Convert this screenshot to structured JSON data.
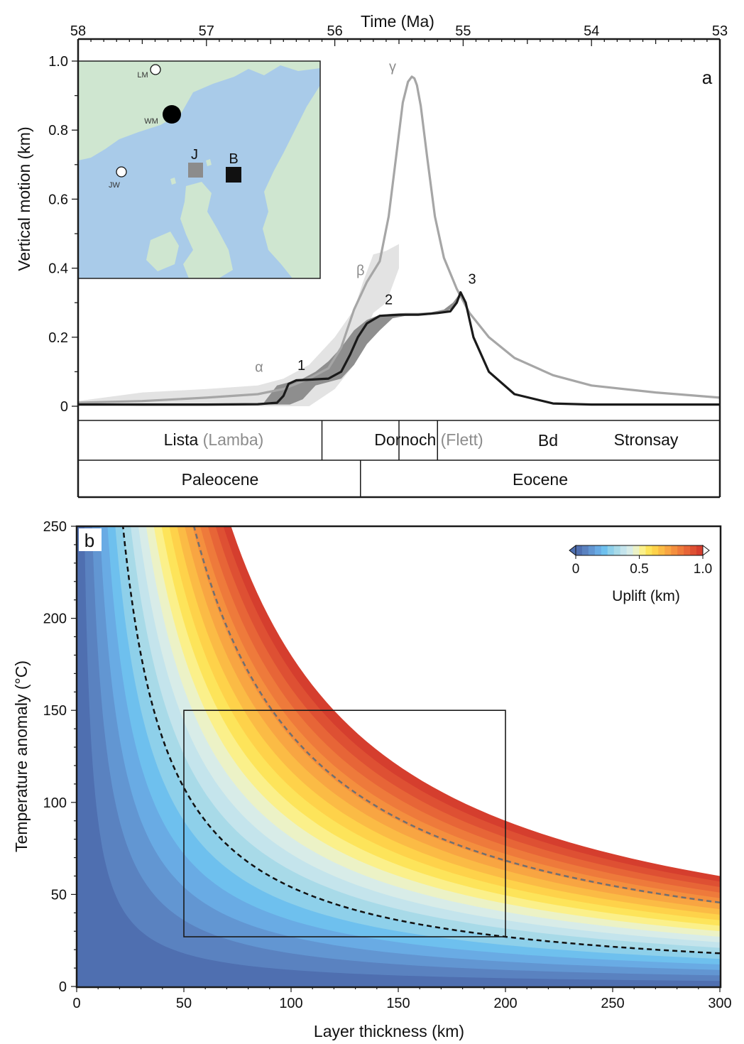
{
  "colors": {
    "black_curve": "#1a1a1a",
    "grey_curve": "#a6a6a6",
    "light_band": "#e3e3e3",
    "dark_band": "#8e8e8e",
    "sea": "#a9cbe9",
    "land": "#cfe6d0",
    "grey_label": "#8c8c8c"
  },
  "chart_data": [
    {
      "type": "line",
      "panel_label": "a",
      "xlabel": "Time (Ma)",
      "ylabel": "Vertical motion (km)",
      "xlim": [
        58,
        53
      ],
      "ylim": [
        0,
        1.0
      ],
      "x_ticks": [
        58,
        57,
        56,
        55,
        54,
        53
      ],
      "x_tick_labels": [
        "58",
        "57",
        "56",
        "55",
        "54",
        "53"
      ],
      "y_ticks": [
        0,
        0.2,
        0.4,
        0.6,
        0.8,
        1.0
      ],
      "y_tick_labels": [
        "0",
        "0.2",
        "0.4",
        "0.6",
        "0.8",
        "1.0"
      ],
      "series": [
        {
          "color": "#1a1a1a",
          "x": [
            58.0,
            57.5,
            57.0,
            56.6,
            56.45,
            56.4,
            56.36,
            56.3,
            56.2,
            56.05,
            55.95,
            55.88,
            55.82,
            55.75,
            55.65,
            55.5,
            55.35,
            55.2,
            55.1,
            55.05,
            55.02,
            54.98,
            54.92,
            54.8,
            54.6,
            54.3,
            54.0,
            53.5,
            53.0
          ],
          "y": [
            0.005,
            0.005,
            0.005,
            0.006,
            0.01,
            0.03,
            0.065,
            0.075,
            0.077,
            0.08,
            0.1,
            0.15,
            0.2,
            0.24,
            0.262,
            0.265,
            0.265,
            0.27,
            0.275,
            0.3,
            0.33,
            0.3,
            0.2,
            0.1,
            0.035,
            0.008,
            0.005,
            0.005,
            0.005
          ]
        },
        {
          "color": "#a6a6a6",
          "x": [
            58.0,
            57.5,
            57.0,
            56.6,
            56.4,
            56.2,
            56.05,
            55.95,
            55.85,
            55.75,
            55.65,
            55.58,
            55.52,
            55.47,
            55.43,
            55.4,
            55.38,
            55.36,
            55.33,
            55.28,
            55.22,
            55.15,
            55.05,
            54.95,
            54.8,
            54.6,
            54.3,
            54.0,
            53.5,
            53.0
          ],
          "y": [
            0.01,
            0.015,
            0.025,
            0.035,
            0.05,
            0.08,
            0.11,
            0.17,
            0.28,
            0.36,
            0.42,
            0.55,
            0.73,
            0.88,
            0.94,
            0.955,
            0.95,
            0.93,
            0.87,
            0.72,
            0.55,
            0.43,
            0.34,
            0.27,
            0.2,
            0.14,
            0.09,
            0.06,
            0.04,
            0.025
          ]
        }
      ],
      "bands": [
        {
          "color": "#e3e3e3",
          "x": [
            58.0,
            57.5,
            57.0,
            56.6,
            56.4,
            56.2,
            56.0,
            55.85,
            55.78,
            55.7,
            55.6,
            55.55,
            55.5
          ],
          "upper": [
            0.015,
            0.04,
            0.05,
            0.06,
            0.08,
            0.12,
            0.2,
            0.28,
            0.36,
            0.44,
            0.45,
            0.46,
            0.47
          ],
          "lower": [
            0.005,
            0.0,
            -0.01,
            -0.01,
            -0.01,
            0.0,
            0.05,
            0.12,
            0.2,
            0.27,
            0.3,
            0.35,
            0.4
          ]
        },
        {
          "color": "#8e8e8e",
          "x": [
            56.55,
            56.45,
            56.35,
            56.25,
            56.15,
            56.05,
            55.95,
            55.85,
            55.75,
            55.65,
            55.55,
            55.45,
            55.35,
            55.25,
            55.15,
            55.08,
            55.04,
            55.02
          ],
          "upper": [
            0.012,
            0.06,
            0.07,
            0.08,
            0.1,
            0.13,
            0.17,
            0.22,
            0.25,
            0.265,
            0.268,
            0.27,
            0.27,
            0.272,
            0.28,
            0.3,
            0.32,
            0.335
          ],
          "lower": [
            0.005,
            0.005,
            0.005,
            0.02,
            0.06,
            0.07,
            0.08,
            0.12,
            0.18,
            0.22,
            0.255,
            0.262,
            0.263,
            0.265,
            0.27,
            0.285,
            0.31,
            0.33
          ]
        }
      ],
      "annotations": [
        {
          "text": "α",
          "x": 56.59,
          "y": 0.1
        },
        {
          "text": "1",
          "x": 56.26,
          "y": 0.105
        },
        {
          "text": "β",
          "x": 55.8,
          "y": 0.38
        },
        {
          "text": "2",
          "x": 55.58,
          "y": 0.295
        },
        {
          "text": "γ",
          "x": 55.55,
          "y": 0.97
        },
        {
          "text": "3",
          "x": 54.93,
          "y": 0.355
        }
      ],
      "inset_map": {
        "sites": [
          {
            "label": "LM",
            "marker": "open-circle"
          },
          {
            "label": "WM",
            "marker": "filled-circle"
          },
          {
            "label": "JW",
            "marker": "open-circle"
          },
          {
            "label": "J",
            "marker": "grey-square"
          },
          {
            "label": "B",
            "marker": "black-square"
          }
        ]
      },
      "stratigraphy": {
        "formations": [
          {
            "name": "Lista",
            "alt": "(Lamba)",
            "from": 58.0,
            "to": 56.1
          },
          {
            "name": "Dornoch",
            "alt": "(Flett)",
            "from": 56.1,
            "to": 55.5
          },
          {
            "name": "Bd",
            "alt": "",
            "from": 55.5,
            "to": 55.2
          },
          {
            "name": "Stronsay",
            "alt": "",
            "from": 55.2,
            "to": 53.0
          }
        ],
        "epochs": [
          {
            "name": "Paleocene",
            "from": 58.0,
            "to": 55.8
          },
          {
            "name": "Eocene",
            "from": 55.8,
            "to": 53.0
          }
        ]
      }
    },
    {
      "type": "heatmap",
      "panel_label": "b",
      "xlabel": "Layer thickness (km)",
      "ylabel": "Temperature anomaly (°C)",
      "xlim": [
        0,
        300
      ],
      "ylim": [
        0,
        250
      ],
      "x_ticks": [
        0,
        50,
        100,
        150,
        200,
        250,
        300
      ],
      "x_tick_labels": [
        "0",
        "50",
        "100",
        "150",
        "200",
        "250",
        "300"
      ],
      "y_ticks": [
        0,
        50,
        100,
        150,
        200,
        250
      ],
      "y_tick_labels": [
        "0",
        "50",
        "100",
        "150",
        "200",
        "250"
      ],
      "uplift_relation": "uplift proportional to layer thickness × temperature anomaly; 1.0 km at 300 km × 60 °C",
      "colorbar": {
        "label": "Uplift (km)",
        "ticks": [
          0,
          0.5,
          1.0
        ],
        "tick_labels": [
          "0",
          "0.5",
          "1.0"
        ],
        "levels": 20,
        "colors": [
          "#4f6fb0",
          "#5a82c0",
          "#6296d2",
          "#69abe4",
          "#6ec0ee",
          "#8ed0ea",
          "#a8dae8",
          "#c4e4ec",
          "#d8ece8",
          "#ecf2c6",
          "#fbf08a",
          "#fde45a",
          "#fed24a",
          "#fbbb45",
          "#f8a542",
          "#f48f3e",
          "#ee7a3b",
          "#e76537",
          "#de5033",
          "#d53e2e"
        ]
      },
      "contours": [
        {
          "style": "black-dashed",
          "uplift_km": 0.3
        },
        {
          "style": "grey-dashed",
          "uplift_km": 0.76
        }
      ],
      "box": {
        "x": [
          50,
          200
        ],
        "y": [
          27,
          150
        ]
      }
    }
  ]
}
